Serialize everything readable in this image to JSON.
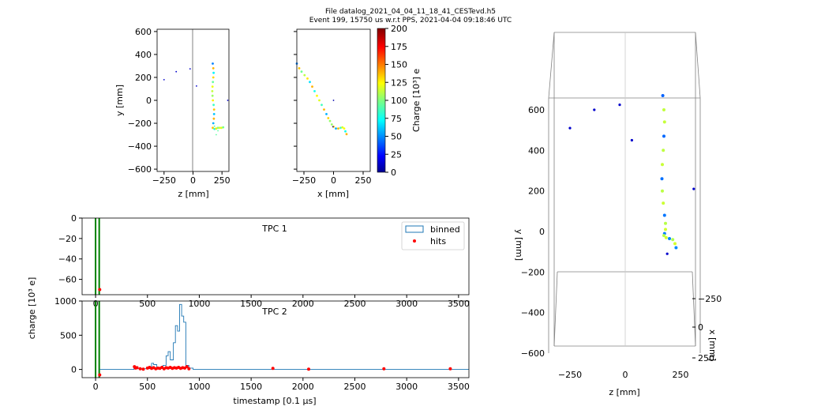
{
  "header": {
    "title_line1": "File datalog_2021_04_04_11_18_41_CESTevd.h5",
    "title_line2": "Event 199, 15750 us w.r.t PPS, 2021-04-04 09:18:46 UTC"
  },
  "chart_data": [
    {
      "id": "zy",
      "type": "scatter",
      "xlabel": "z [mm]",
      "ylabel": "y [mm]",
      "xlim": [
        -310,
        310
      ],
      "ylim": [
        -620,
        620
      ],
      "xticks": [
        -250,
        0,
        250
      ],
      "yticks": [
        -600,
        -400,
        -200,
        0,
        200,
        400,
        600
      ],
      "track": [
        [
          170,
          320
        ],
        [
          175,
          280
        ],
        [
          178,
          240
        ],
        [
          175,
          200
        ],
        [
          172,
          160
        ],
        [
          168,
          120
        ],
        [
          166,
          80
        ],
        [
          168,
          40
        ],
        [
          172,
          0
        ],
        [
          178,
          -40
        ],
        [
          182,
          -80
        ],
        [
          182,
          -120
        ],
        [
          180,
          -160
        ],
        [
          175,
          -200
        ],
        [
          170,
          -240
        ],
        [
          185,
          -250
        ],
        [
          200,
          -245
        ],
        [
          215,
          -240
        ],
        [
          230,
          -240
        ],
        [
          245,
          -240
        ],
        [
          260,
          -235
        ]
      ],
      "extra_points": [
        [
          -250,
          180
        ],
        [
          -145,
          250
        ],
        [
          -25,
          275
        ],
        [
          30,
          125
        ],
        [
          300,
          0
        ],
        [
          200,
          -300
        ],
        [
          215,
          -265
        ],
        [
          185,
          -225
        ]
      ]
    },
    {
      "id": "xy",
      "type": "scatter",
      "xlabel": "x [mm]",
      "xlim": [
        -310,
        310
      ],
      "ylim": [
        -620,
        620
      ],
      "xticks": [
        -250,
        0,
        250
      ],
      "track": [
        [
          -310,
          320
        ],
        [
          -290,
          280
        ],
        [
          -270,
          250
        ],
        [
          -245,
          220
        ],
        [
          -220,
          190
        ],
        [
          -200,
          160
        ],
        [
          -180,
          120
        ],
        [
          -160,
          80
        ],
        [
          -140,
          40
        ],
        [
          -120,
          0
        ],
        [
          -100,
          -40
        ],
        [
          -80,
          -80
        ],
        [
          -60,
          -120
        ],
        [
          -45,
          -155
        ],
        [
          -30,
          -180
        ],
        [
          -15,
          -210
        ],
        [
          0,
          -230
        ],
        [
          20,
          -245
        ],
        [
          40,
          -245
        ],
        [
          60,
          -240
        ],
        [
          75,
          -235
        ],
        [
          90,
          -245
        ],
        [
          100,
          -270
        ],
        [
          110,
          -295
        ]
      ],
      "extra_points": [
        [
          0,
          0
        ],
        [
          -5,
          -230
        ]
      ]
    },
    {
      "id": "colorbar",
      "type": "colorbar",
      "label": "Charge [10³] e",
      "range": [
        0,
        200
      ],
      "ticks": [
        0,
        25,
        50,
        75,
        100,
        125,
        150,
        175,
        200
      ]
    },
    {
      "id": "tpc1",
      "type": "line",
      "panel_label": "TPC 1",
      "xlim": [
        -130,
        3600
      ],
      "ylim": [
        -75,
        0
      ],
      "xticks": [
        0,
        500,
        1000,
        1500,
        2000,
        2500,
        3000,
        3500
      ],
      "yticks": [
        0,
        -20,
        -40,
        -60
      ],
      "vlines": [
        0,
        35
      ],
      "hits": [
        [
          40,
          -70
        ]
      ],
      "legend": {
        "binned": "binned",
        "hits": "hits",
        "position": "top-right"
      }
    },
    {
      "id": "tpc2",
      "type": "line",
      "panel_label": "TPC 2",
      "ylabel": "charge [10³ e]",
      "xlabel": "timestamp [0.1 μs]",
      "xlim": [
        -130,
        3600
      ],
      "ylim": [
        -120,
        1000
      ],
      "xticks": [
        0,
        500,
        1000,
        1500,
        2000,
        2500,
        3000,
        3500
      ],
      "yticks": [
        0,
        500,
        1000
      ],
      "vlines": [
        0,
        35
      ],
      "binned": [
        [
          40,
          0
        ],
        [
          370,
          0
        ],
        [
          370,
          40
        ],
        [
          400,
          40
        ],
        [
          400,
          10
        ],
        [
          520,
          10
        ],
        [
          520,
          40
        ],
        [
          540,
          40
        ],
        [
          540,
          90
        ],
        [
          560,
          90
        ],
        [
          560,
          70
        ],
        [
          590,
          70
        ],
        [
          590,
          20
        ],
        [
          650,
          20
        ],
        [
          650,
          60
        ],
        [
          680,
          60
        ],
        [
          680,
          200
        ],
        [
          700,
          200
        ],
        [
          700,
          260
        ],
        [
          720,
          260
        ],
        [
          720,
          140
        ],
        [
          750,
          140
        ],
        [
          750,
          390
        ],
        [
          770,
          390
        ],
        [
          770,
          640
        ],
        [
          790,
          640
        ],
        [
          790,
          560
        ],
        [
          810,
          560
        ],
        [
          810,
          950
        ],
        [
          830,
          950
        ],
        [
          830,
          780
        ],
        [
          850,
          780
        ],
        [
          850,
          690
        ],
        [
          870,
          690
        ],
        [
          870,
          60
        ],
        [
          900,
          60
        ],
        [
          900,
          20
        ],
        [
          940,
          20
        ],
        [
          940,
          0
        ],
        [
          3600,
          0
        ]
      ],
      "hits": [
        [
          40,
          -80
        ],
        [
          375,
          40
        ],
        [
          385,
          20
        ],
        [
          400,
          25
        ],
        [
          430,
          10
        ],
        [
          460,
          5
        ],
        [
          500,
          20
        ],
        [
          520,
          30
        ],
        [
          540,
          15
        ],
        [
          560,
          25
        ],
        [
          580,
          10
        ],
        [
          600,
          20
        ],
        [
          620,
          15
        ],
        [
          640,
          30
        ],
        [
          660,
          10
        ],
        [
          680,
          25
        ],
        [
          700,
          20
        ],
        [
          720,
          30
        ],
        [
          740,
          15
        ],
        [
          760,
          25
        ],
        [
          780,
          20
        ],
        [
          800,
          30
        ],
        [
          820,
          15
        ],
        [
          840,
          25
        ],
        [
          860,
          20
        ],
        [
          880,
          40
        ],
        [
          900,
          10
        ],
        [
          1710,
          15
        ],
        [
          2055,
          5
        ],
        [
          2780,
          10
        ],
        [
          3420,
          10
        ]
      ]
    },
    {
      "id": "3d",
      "type": "scatter",
      "xlabel": "z [mm]",
      "ylabel": "y [mm]",
      "zlabel": "x [mm]",
      "xticks": [
        -250,
        0,
        250
      ],
      "yticks": [
        -600,
        -400,
        -200,
        0,
        200,
        400,
        600
      ],
      "zticks": [
        -250,
        0,
        250
      ],
      "track": [
        [
          170,
          670
        ],
        [
          175,
          600
        ],
        [
          178,
          540
        ],
        [
          175,
          470
        ],
        [
          172,
          400
        ],
        [
          168,
          330
        ],
        [
          166,
          260
        ],
        [
          168,
          200
        ],
        [
          172,
          140
        ],
        [
          178,
          80
        ],
        [
          182,
          40
        ],
        [
          182,
          10
        ],
        [
          178,
          -10
        ],
        [
          175,
          -20
        ],
        [
          185,
          -30
        ],
        [
          200,
          -35
        ],
        [
          215,
          -40
        ],
        [
          225,
          -60
        ],
        [
          230,
          -80
        ]
      ],
      "extra_points": [
        [
          -250,
          510
        ],
        [
          -140,
          600
        ],
        [
          -25,
          625
        ],
        [
          30,
          450
        ],
        [
          310,
          210
        ],
        [
          190,
          -110
        ]
      ]
    }
  ]
}
